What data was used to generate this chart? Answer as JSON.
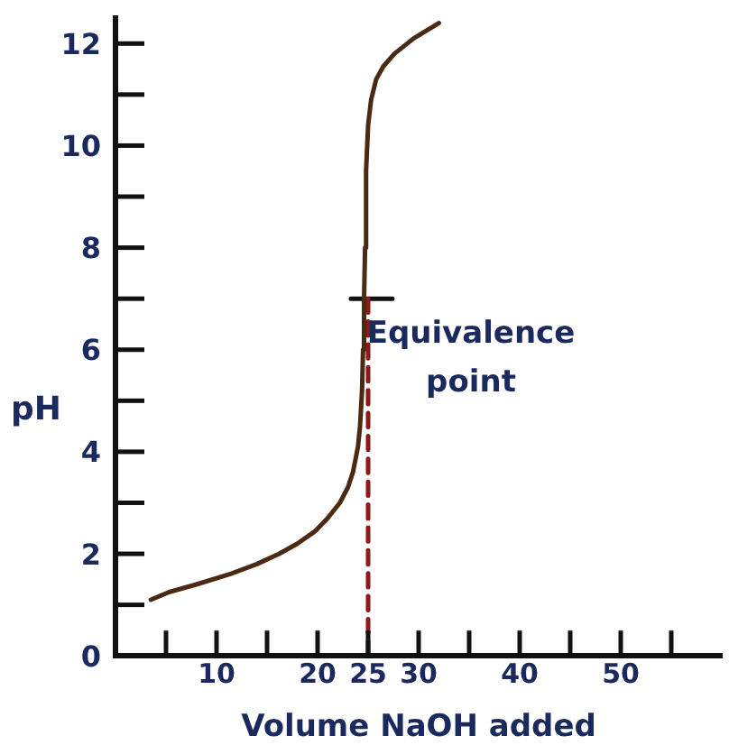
{
  "chart_data": {
    "type": "line",
    "xlabel": "Volume NaOH added",
    "ylabel": "pH",
    "xlim": [
      0,
      60
    ],
    "ylim": [
      0,
      12.5
    ],
    "xticks": [
      {
        "value": 5,
        "label": null
      },
      10,
      {
        "value": 15,
        "label": null
      },
      20,
      25,
      30,
      {
        "value": 35,
        "label": null
      },
      40,
      {
        "value": 45,
        "label": null
      },
      50,
      {
        "value": 55,
        "label": null
      }
    ],
    "yticks": [
      0,
      {
        "value": 1,
        "label": null
      },
      2,
      {
        "value": 3,
        "label": null
      },
      4,
      {
        "value": 5,
        "label": null
      },
      6,
      {
        "value": 7,
        "label": null
      },
      8,
      {
        "value": 9,
        "label": null
      },
      10,
      {
        "value": 11,
        "label": null
      },
      12
    ],
    "grid": false,
    "legend": false,
    "marker": "none",
    "series": [
      {
        "color": "#4a2a12",
        "line_style": "solid",
        "x": [
          3.5,
          5.3,
          8,
          11.3,
          14,
          16.2,
          18,
          19.8,
          21,
          22.2,
          23,
          23.5,
          24,
          24.2,
          24.4,
          24.5,
          24.6,
          24.7,
          24.8,
          25,
          25.3,
          25.8,
          26.5,
          27.6,
          29.5,
          32
        ],
        "values": [
          1.1,
          1.25,
          1.4,
          1.6,
          1.8,
          2.0,
          2.2,
          2.45,
          2.7,
          3.0,
          3.3,
          3.6,
          4.1,
          4.5,
          5.2,
          6.0,
          7.0,
          8.0,
          9.5,
          10.4,
          10.9,
          11.3,
          11.55,
          11.8,
          12.1,
          12.4
        ]
      },
      {
        "color": "#8b1a1a",
        "line_style": "dashed",
        "x": [
          25,
          25
        ],
        "values": [
          0,
          7
        ]
      },
      {
        "color": "#111111",
        "line_style": "solid",
        "x": [
          23.3,
          27.4
        ],
        "values": [
          7,
          7
        ]
      }
    ],
    "annotations": [
      {
        "text": "Equivalence point",
        "x": 25,
        "y": 7
      }
    ]
  }
}
